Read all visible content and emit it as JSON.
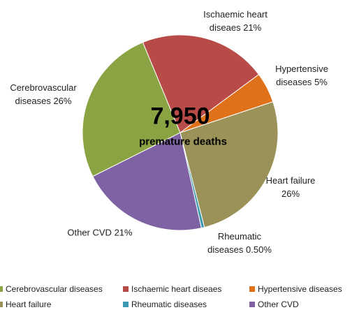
{
  "chart_data": {
    "type": "pie",
    "center_text": "7,950",
    "center_subtitle": "premature deaths",
    "categories": [
      "Ischaemic heart diseaes",
      "Hypertensive diseases",
      "Heart failure",
      "Rheumatic diseases",
      "Other CVD",
      "Cerebrovascular diseases"
    ],
    "values": [
      21,
      5,
      26,
      0.5,
      21,
      26
    ],
    "value_labels": [
      "21%",
      "5%",
      "26%",
      "0.50%",
      "21%",
      "26%"
    ],
    "colors": [
      "#b84a48",
      "#e0711b",
      "#9b9259",
      "#3b9ab0",
      "#7e62a3",
      "#8aa343"
    ],
    "legend": "bottom"
  }
}
